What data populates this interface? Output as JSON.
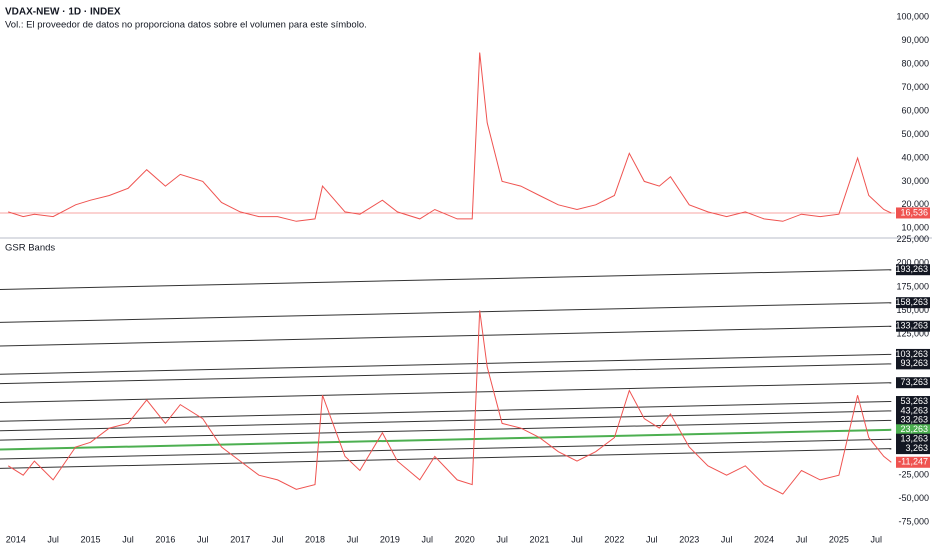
{
  "chart_data": [
    {
      "type": "line",
      "title": "VDAX-NEW · 1D · INDEX",
      "subtitle": "Vol.: El proveedor de datos no proporciona datos sobre el volumen para este símbolo.",
      "color": "#ef5350",
      "x": [
        2013.9,
        2014.1,
        2014.25,
        2014.5,
        2014.8,
        2015.0,
        2015.25,
        2015.5,
        2015.75,
        2016.0,
        2016.2,
        2016.5,
        2016.75,
        2017.0,
        2017.25,
        2017.5,
        2017.75,
        2018.0,
        2018.1,
        2018.4,
        2018.6,
        2018.9,
        2019.1,
        2019.4,
        2019.6,
        2019.9,
        2020.1,
        2020.2,
        2020.3,
        2020.5,
        2020.75,
        2021.0,
        2021.25,
        2021.5,
        2021.75,
        2022.0,
        2022.2,
        2022.4,
        2022.6,
        2022.75,
        2023.0,
        2023.25,
        2023.5,
        2023.75,
        2024.0,
        2024.25,
        2024.5,
        2024.75,
        2025.0,
        2025.25,
        2025.4,
        2025.6,
        2025.7
      ],
      "values": [
        17,
        15,
        16,
        15,
        20,
        22,
        24,
        27,
        35,
        28,
        33,
        30,
        21,
        17,
        15,
        15,
        13,
        14,
        28,
        17,
        16,
        22,
        17,
        14,
        18,
        14,
        14,
        85,
        55,
        30,
        28,
        24,
        20,
        18,
        20,
        24,
        42,
        30,
        28,
        32,
        20,
        17,
        15,
        17,
        14,
        13,
        16,
        15,
        16,
        40,
        24,
        18,
        16.536
      ],
      "value_labels": [
        null,
        null,
        null,
        null,
        null,
        null,
        null,
        null,
        null,
        null,
        null,
        null,
        null,
        null,
        null,
        null,
        null,
        null,
        null,
        null,
        null,
        null,
        null,
        null,
        null,
        null,
        null,
        null,
        null,
        null,
        null,
        null,
        null,
        null,
        null,
        null,
        null,
        null,
        null,
        null,
        null,
        null,
        null,
        null,
        null,
        null,
        null,
        null,
        null,
        null,
        null,
        null,
        "16,536"
      ],
      "xlim": [
        2013.79,
        2025.75
      ],
      "ylim": [
        5,
        104
      ],
      "yticks": [
        {
          "value": 100,
          "label": "100,000"
        },
        {
          "value": 90,
          "label": "90,000"
        },
        {
          "value": 80,
          "label": "80,000"
        },
        {
          "value": 70,
          "label": "70,000"
        },
        {
          "value": 60,
          "label": "60,000"
        },
        {
          "value": 50,
          "label": "50,000"
        },
        {
          "value": 40,
          "label": "40,000"
        },
        {
          "value": 30,
          "label": "30,000"
        },
        {
          "value": 20,
          "label": "20,000"
        },
        {
          "value": 10,
          "label": "10,000"
        }
      ]
    },
    {
      "type": "line",
      "title": "GSR Bands",
      "xlim": [
        2013.79,
        2025.75
      ],
      "ylim": [
        -80,
        228
      ],
      "yticks": [
        {
          "value": 225,
          "label": "225,000"
        },
        {
          "value": 200,
          "label": "200,000"
        },
        {
          "value": 175,
          "label": "175,000"
        },
        {
          "value": 150,
          "label": "150,000"
        },
        {
          "value": 125,
          "label": "125,000"
        },
        {
          "value": -25,
          "label": "-25,000"
        },
        {
          "value": -50,
          "label": "-50,000"
        },
        {
          "value": -75,
          "label": "-75,000"
        }
      ],
      "xticks": [
        {
          "value": 2014,
          "label": "2014"
        },
        {
          "value": 2014.5,
          "label": "Jul"
        },
        {
          "value": 2015,
          "label": "2015"
        },
        {
          "value": 2015.5,
          "label": "Jul"
        },
        {
          "value": 2016,
          "label": "2016"
        },
        {
          "value": 2016.5,
          "label": "Jul"
        },
        {
          "value": 2017,
          "label": "2017"
        },
        {
          "value": 2017.5,
          "label": "Jul"
        },
        {
          "value": 2018,
          "label": "2018"
        },
        {
          "value": 2018.5,
          "label": "Jul"
        },
        {
          "value": 2019,
          "label": "2019"
        },
        {
          "value": 2019.5,
          "label": "Jul"
        },
        {
          "value": 2020,
          "label": "2020"
        },
        {
          "value": 2020.5,
          "label": "Jul"
        },
        {
          "value": 2021,
          "label": "2021"
        },
        {
          "value": 2021.5,
          "label": "Jul"
        },
        {
          "value": 2022,
          "label": "2022"
        },
        {
          "value": 2022.5,
          "label": "Jul"
        },
        {
          "value": 2023,
          "label": "2023"
        },
        {
          "value": 2023.5,
          "label": "Jul"
        },
        {
          "value": 2024,
          "label": "2024"
        },
        {
          "value": 2024.5,
          "label": "Jul"
        },
        {
          "value": 2025,
          "label": "2025"
        },
        {
          "value": 2025.5,
          "label": "Jul"
        }
      ],
      "series": [
        {
          "color": "#333333",
          "x": [
            2013.79,
            2025.7
          ],
          "values": [
            172.263,
            193.263
          ],
          "value_labels": [
            null,
            "193,263"
          ]
        },
        {
          "color": "#333333",
          "x": [
            2013.79,
            2025.7
          ],
          "values": [
            137.263,
            158.263
          ],
          "value_labels": [
            null,
            "158,263"
          ]
        },
        {
          "color": "#333333",
          "x": [
            2013.79,
            2025.7
          ],
          "values": [
            112.263,
            133.263
          ],
          "value_labels": [
            null,
            "133,263"
          ]
        },
        {
          "color": "#333333",
          "x": [
            2013.79,
            2025.7
          ],
          "values": [
            82.263,
            103.263
          ],
          "value_labels": [
            null,
            "103,263"
          ]
        },
        {
          "color": "#333333",
          "x": [
            2013.79,
            2025.7
          ],
          "values": [
            72.263,
            93.263
          ],
          "value_labels": [
            null,
            "93,263"
          ]
        },
        {
          "color": "#333333",
          "x": [
            2013.79,
            2025.7
          ],
          "values": [
            52.263,
            73.263
          ],
          "value_labels": [
            null,
            "73,263"
          ]
        },
        {
          "color": "#333333",
          "x": [
            2013.79,
            2025.7
          ],
          "values": [
            32.263,
            53.263
          ],
          "value_labels": [
            null,
            "53,263"
          ]
        },
        {
          "color": "#333333",
          "x": [
            2013.79,
            2025.7
          ],
          "values": [
            22.263,
            43.263
          ],
          "value_labels": [
            null,
            "43,263"
          ]
        },
        {
          "color": "#333333",
          "x": [
            2013.79,
            2025.7
          ],
          "values": [
            12.263,
            33.263
          ],
          "value_labels": [
            null,
            "33,263"
          ]
        },
        {
          "color": "#4caf50",
          "x": [
            2013.79,
            2025.7
          ],
          "values": [
            2.263,
            23.263
          ],
          "value_labels": [
            null,
            "23,263"
          ]
        },
        {
          "color": "#333333",
          "x": [
            2013.79,
            2025.7
          ],
          "values": [
            -7.737,
            13.263
          ],
          "value_labels": [
            null,
            "13,263"
          ]
        },
        {
          "color": "#333333",
          "x": [
            2013.79,
            2025.7
          ],
          "values": [
            -17.737,
            3.263
          ],
          "value_labels": [
            null,
            "3,263"
          ]
        },
        {
          "color": "#ef5350",
          "x": [
            2013.9,
            2014.1,
            2014.25,
            2014.5,
            2014.8,
            2015.0,
            2015.25,
            2015.5,
            2015.75,
            2016.0,
            2016.2,
            2016.5,
            2016.75,
            2017.0,
            2017.25,
            2017.5,
            2017.75,
            2018.0,
            2018.1,
            2018.4,
            2018.6,
            2018.9,
            2019.1,
            2019.4,
            2019.6,
            2019.9,
            2020.1,
            2020.2,
            2020.3,
            2020.5,
            2020.75,
            2021.0,
            2021.25,
            2021.5,
            2021.75,
            2022.0,
            2022.2,
            2022.4,
            2022.6,
            2022.75,
            2023.0,
            2023.25,
            2023.5,
            2023.75,
            2024.0,
            2024.25,
            2024.5,
            2024.75,
            2025.0,
            2025.25,
            2025.4,
            2025.6,
            2025.7
          ],
          "values": [
            -15,
            -25,
            -10,
            -30,
            5,
            10,
            25,
            30,
            55,
            30,
            50,
            35,
            5,
            -10,
            -25,
            -30,
            -40,
            -35,
            60,
            -5,
            -20,
            20,
            -10,
            -30,
            -5,
            -30,
            -35,
            150,
            90,
            30,
            25,
            15,
            0,
            -10,
            0,
            15,
            65,
            35,
            25,
            40,
            5,
            -15,
            -25,
            -15,
            -35,
            -45,
            -20,
            -30,
            -25,
            60,
            15,
            -5,
            -11.247
          ],
          "value_labels": [
            null,
            null,
            null,
            null,
            null,
            null,
            null,
            null,
            null,
            null,
            null,
            null,
            null,
            null,
            null,
            null,
            null,
            null,
            null,
            null,
            null,
            null,
            null,
            null,
            null,
            null,
            null,
            null,
            null,
            null,
            null,
            null,
            null,
            null,
            null,
            null,
            null,
            null,
            null,
            null,
            null,
            null,
            null,
            null,
            null,
            null,
            null,
            null,
            null,
            null,
            null,
            null,
            "-11,247"
          ]
        }
      ]
    }
  ]
}
